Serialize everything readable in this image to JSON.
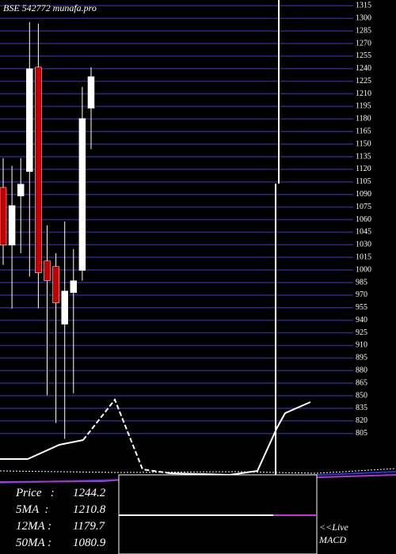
{
  "header": {
    "title": "BSE 542772 munafa.pro"
  },
  "chart_data": {
    "type": "candlestick",
    "ylim": [
      800,
      1320
    ],
    "yticks": [
      805,
      820,
      835,
      850,
      865,
      880,
      895,
      910,
      925,
      940,
      955,
      970,
      985,
      1000,
      1015,
      1030,
      1045,
      1060,
      1075,
      1090,
      1105,
      1120,
      1135,
      1150,
      1165,
      1180,
      1195,
      1210,
      1225,
      1240,
      1255,
      1270,
      1285,
      1300,
      1315
    ],
    "open": [
      1098.3,
      1029.6,
      1088.1,
      1117.3,
      1241.8,
      1010.7,
      1004.1,
      935.3,
      973.0,
      999.4,
      1192.8
    ],
    "high": [
      1133.4,
      1124.0,
      1133.4,
      1295.6,
      1293.7,
      1053.2,
      1020.0,
      1057.9,
      1025.0,
      1218.3,
      1241.8
    ],
    "low": [
      1006.0,
      954.0,
      1020.0,
      992.0,
      954.2,
      850.5,
      817.5,
      798.6,
      853.0,
      987.2,
      1144.0
    ],
    "close": [
      1029.6,
      1076.8,
      1102.3,
      1239.9,
      996.6,
      987.2,
      960.7,
      974.9,
      987.2,
      1180.6,
      1230.5
    ],
    "up_color": "#ffffff",
    "down_color": "#c00000",
    "grid_color": "#2a2a86"
  },
  "stats": [
    {
      "label": "Price   :",
      "value": 1244.2
    },
    {
      "label": "5MA  :",
      "value": 1210.8
    },
    {
      "label": "12MA :",
      "value": 1179.7
    },
    {
      "label": "50MA :",
      "value": 1080.9
    }
  ],
  "live_label": "<<Live",
  "macd_label": "MACD"
}
